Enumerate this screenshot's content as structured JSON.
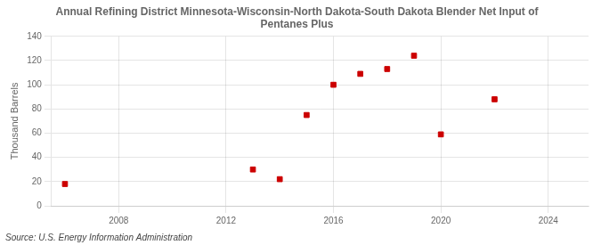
{
  "chart_data": {
    "type": "scatter",
    "title": "Annual Refining District Minnesota-Wisconsin-North Dakota-South Dakota Blender Net Input of\nPentanes Plus",
    "ylabel": "Thousand Barrels",
    "source": "Source: U.S. Energy Information Administration",
    "x": [
      2006,
      2013,
      2014,
      2015,
      2016,
      2017,
      2018,
      2019,
      2020,
      2022
    ],
    "values": [
      18,
      30,
      22,
      75,
      100,
      109,
      113,
      124,
      59,
      88
    ],
    "color": "#cc0000",
    "marker": "square",
    "xlim": [
      2005.5,
      2025.5
    ],
    "ylim": [
      0,
      140
    ],
    "xticks": [
      2008,
      2012,
      2016,
      2020,
      2024
    ],
    "yticks": [
      0,
      20,
      40,
      60,
      80,
      100,
      120,
      140
    ],
    "grid": true
  }
}
